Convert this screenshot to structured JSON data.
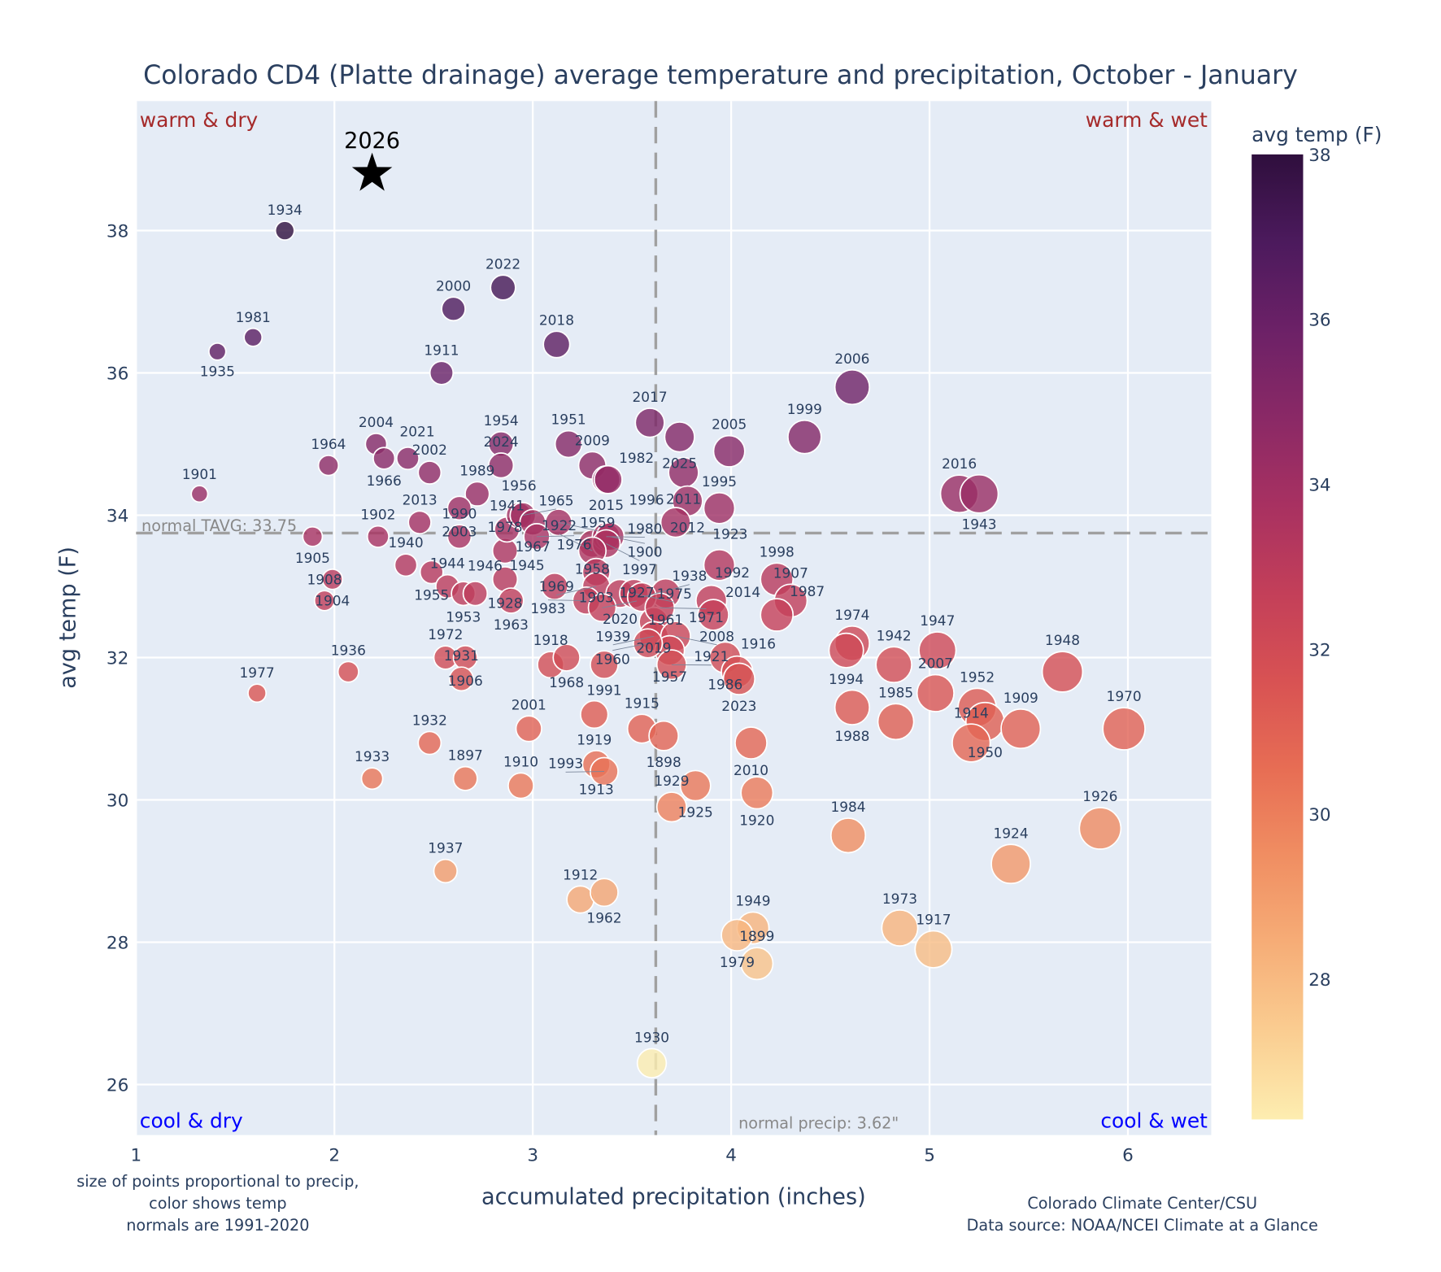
{
  "chart_data": {
    "type": "scatter",
    "title": "Colorado CD4 (Platte drainage) average temperature and precipitation, October - January",
    "xlabel": "accumulated precipitation (inches)",
    "ylabel": "avg temp (F)",
    "xlim": [
      1.0,
      6.42
    ],
    "ylim": [
      25.29,
      39.82
    ],
    "xticks": [
      1,
      2,
      3,
      4,
      5,
      6
    ],
    "yticks": [
      26,
      28,
      30,
      32,
      34,
      36,
      38
    ],
    "grid": true,
    "colorbar": {
      "title": "avg temp (F)",
      "range": [
        26.3,
        38
      ],
      "ticks": [
        28,
        30,
        32,
        34,
        36,
        38
      ]
    },
    "colorscale": [
      "#fdedb0",
      "#facd91",
      "#f6ad77",
      "#f08e62",
      "#e76d54",
      "#d85253",
      "#c33f59",
      "#a83161",
      "#8a2966",
      "#6c2167",
      "#4c1a5d",
      "#2f0f3d"
    ],
    "normal_temp": 33.75,
    "normal_precip": 3.62,
    "normal_temp_label": "normal TAVG: 33.75",
    "normal_precip_label": "normal precip: 3.62\"",
    "quadrants": {
      "warm_dry": "warm & dry",
      "warm_wet": "warm & wet",
      "cool_dry": "cool & dry",
      "cool_wet": "cool & wet"
    },
    "quadrant_colors": {
      "warm": "#a52a2a",
      "cool": "#0000ff"
    },
    "highlight": {
      "label": "2026",
      "precip": 2.19,
      "temp": 38.8
    },
    "columns": [
      "year",
      "precip",
      "temp"
    ],
    "points": [
      [
        "1934",
        1.75,
        38.0
      ],
      [
        "2022",
        2.85,
        37.2
      ],
      [
        "2000",
        2.6,
        36.9
      ],
      [
        "1981",
        1.59,
        36.5
      ],
      [
        "1935",
        1.41,
        36.3
      ],
      [
        "2018",
        3.12,
        36.4
      ],
      [
        "1911",
        2.54,
        36.0
      ],
      [
        "2006",
        4.61,
        35.8
      ],
      [
        "1999",
        4.37,
        35.1
      ],
      [
        "2017",
        3.59,
        35.3
      ],
      [
        "2025",
        3.74,
        35.1
      ],
      [
        "2005",
        3.99,
        34.9
      ],
      [
        "1951",
        3.18,
        35.0
      ],
      [
        "1954",
        2.84,
        35.0
      ],
      [
        "2004",
        2.21,
        35.0
      ],
      [
        "1966",
        2.25,
        34.8
      ],
      [
        "2021",
        2.37,
        34.8
      ],
      [
        "1964",
        1.97,
        34.7
      ],
      [
        "2002",
        2.48,
        34.6
      ],
      [
        "2024",
        2.84,
        34.7
      ],
      [
        "1989",
        2.72,
        34.3
      ],
      [
        "2009",
        3.3,
        34.7
      ],
      [
        "2015",
        3.37,
        34.5
      ],
      [
        "1982",
        3.38,
        34.5
      ],
      [
        "2011",
        3.76,
        34.6
      ],
      [
        "2012",
        3.78,
        34.2
      ],
      [
        "1995",
        3.94,
        34.1
      ],
      [
        "1901",
        1.32,
        34.3
      ],
      [
        "2016",
        5.15,
        34.3
      ],
      [
        "1943",
        5.25,
        34.3
      ],
      [
        "2003",
        2.63,
        34.1
      ],
      [
        "1990",
        2.63,
        33.7
      ],
      [
        "2013",
        2.43,
        33.9
      ],
      [
        "1905",
        1.89,
        33.7
      ],
      [
        "1902",
        2.22,
        33.7
      ],
      [
        "1940",
        2.36,
        33.3
      ],
      [
        "1955",
        2.49,
        33.2
      ],
      [
        "1904",
        1.99,
        33.1
      ],
      [
        "1908",
        1.95,
        32.8
      ],
      [
        "1944",
        2.57,
        33.0
      ],
      [
        "1953",
        2.65,
        32.9
      ],
      [
        "1946",
        2.71,
        32.9
      ],
      [
        "1978",
        2.86,
        33.5
      ],
      [
        "1928",
        2.86,
        33.1
      ],
      [
        "1963",
        2.89,
        32.8
      ],
      [
        "1941",
        2.87,
        33.8
      ],
      [
        "1956",
        2.93,
        34.0
      ],
      [
        "1965",
        2.95,
        34.0
      ],
      [
        "1967",
        3.0,
        33.9
      ],
      [
        "1959",
        3.13,
        33.9
      ],
      [
        "1976",
        3.02,
        33.7
      ],
      [
        "1958",
        3.3,
        33.6
      ],
      [
        "1980",
        3.37,
        33.7
      ],
      [
        "1900",
        3.39,
        33.7
      ],
      [
        "1997",
        3.37,
        33.6
      ],
      [
        "1922",
        3.3,
        33.5
      ],
      [
        "1903",
        3.32,
        33.2
      ],
      [
        "1969",
        3.32,
        33.0
      ],
      [
        "2020",
        3.44,
        32.9
      ],
      [
        "1975",
        3.51,
        32.9
      ],
      [
        "1961",
        3.67,
        32.9
      ],
      [
        "1938",
        3.55,
        32.85
      ],
      [
        "1983",
        3.27,
        32.8
      ],
      [
        "1927",
        3.35,
        32.7
      ],
      [
        "1945",
        3.11,
        33.0
      ],
      [
        "2019",
        3.61,
        32.5
      ],
      [
        "1971",
        3.64,
        32.7
      ],
      [
        "1939",
        3.61,
        32.3
      ],
      [
        "2008",
        3.72,
        32.3
      ],
      [
        "1957",
        3.69,
        32.1
      ],
      [
        "1960",
        3.58,
        32.2
      ],
      [
        "1921",
        3.7,
        31.9
      ],
      [
        "1918",
        3.09,
        31.9
      ],
      [
        "1968",
        3.17,
        32.0
      ],
      [
        "1991",
        3.36,
        31.9
      ],
      [
        "1972",
        2.56,
        32.0
      ],
      [
        "1906",
        2.66,
        32.0
      ],
      [
        "1931",
        2.64,
        31.7
      ],
      [
        "1936",
        2.07,
        31.8
      ],
      [
        "1977",
        1.61,
        31.5
      ],
      [
        "1996",
        3.72,
        33.9
      ],
      [
        "1923",
        3.94,
        33.3
      ],
      [
        "1992",
        3.9,
        32.8
      ],
      [
        "2014",
        3.91,
        32.6
      ],
      [
        "1986",
        3.97,
        32.0
      ],
      [
        "1916",
        4.03,
        31.8
      ],
      [
        "2023",
        4.04,
        31.7
      ],
      [
        "1998",
        4.23,
        33.1
      ],
      [
        "1907",
        4.3,
        32.8
      ],
      [
        "1987",
        4.23,
        32.6
      ],
      [
        "1974",
        4.61,
        32.2
      ],
      [
        "1994",
        4.58,
        32.1
      ],
      [
        "1942",
        4.82,
        31.9
      ],
      [
        "1947",
        5.04,
        32.1
      ],
      [
        "2007",
        5.03,
        31.5
      ],
      [
        "1948",
        5.67,
        31.8
      ],
      [
        "1988",
        4.61,
        31.3
      ],
      [
        "1985",
        4.83,
        31.1
      ],
      [
        "1952",
        5.24,
        31.3
      ],
      [
        "1950",
        5.28,
        31.1
      ],
      [
        "1914",
        5.21,
        30.8
      ],
      [
        "1909",
        5.46,
        31.0
      ],
      [
        "1970",
        5.98,
        31.0
      ],
      [
        "2001",
        2.98,
        31.0
      ],
      [
        "1919",
        3.31,
        31.2
      ],
      [
        "1915",
        3.55,
        31.0
      ],
      [
        "1898",
        3.66,
        30.9
      ],
      [
        "1913",
        3.32,
        30.5
      ],
      [
        "1993",
        3.36,
        30.4
      ],
      [
        "1925",
        3.82,
        30.2
      ],
      [
        "1929",
        3.7,
        29.9
      ],
      [
        "2010",
        4.1,
        30.8
      ],
      [
        "1920",
        4.13,
        30.1
      ],
      [
        "1932",
        2.48,
        30.8
      ],
      [
        "1897",
        2.66,
        30.3
      ],
      [
        "1910",
        2.94,
        30.2
      ],
      [
        "1933",
        2.19,
        30.3
      ],
      [
        "1937",
        2.56,
        29.0
      ],
      [
        "1912",
        3.24,
        28.6
      ],
      [
        "1962",
        3.36,
        28.7
      ],
      [
        "1984",
        4.59,
        29.5
      ],
      [
        "1926",
        5.86,
        29.6
      ],
      [
        "1924",
        5.41,
        29.1
      ],
      [
        "1973",
        4.85,
        28.2
      ],
      [
        "1917",
        5.02,
        27.9
      ],
      [
        "1949",
        4.11,
        28.2
      ],
      [
        "1979",
        4.03,
        28.1
      ],
      [
        "1899",
        4.13,
        27.7
      ],
      [
        "1930",
        3.6,
        26.3
      ]
    ]
  },
  "footnotes": {
    "left": [
      "size of points proportional to precip,",
      "color shows temp",
      "normals are 1991-2020"
    ],
    "right": [
      "Colorado Climate Center/CSU",
      "Data source: NOAA/NCEI Climate at a Glance"
    ]
  }
}
